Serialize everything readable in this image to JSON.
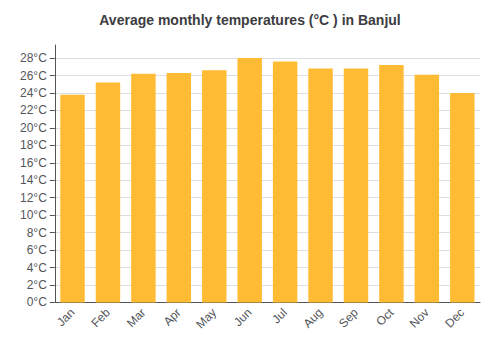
{
  "chart_data": {
    "type": "bar",
    "title": "Average monthly temperatures (°C ) in Banjul",
    "categories": [
      "Jan",
      "Feb",
      "Mar",
      "Apr",
      "May",
      "Jun",
      "Jul",
      "Aug",
      "Sep",
      "Oct",
      "Nov",
      "Dec"
    ],
    "values": [
      23.8,
      25.2,
      26.2,
      26.3,
      26.6,
      28.0,
      27.6,
      26.8,
      26.8,
      27.2,
      26.1,
      24.0
    ],
    "color": "#FFBB33",
    "ylim": [
      0,
      29.5
    ],
    "yticks": [
      {
        "value": 0,
        "label": "0°C"
      },
      {
        "value": 2,
        "label": "2°C"
      },
      {
        "value": 4,
        "label": "4°C"
      },
      {
        "value": 6,
        "label": "6°C"
      },
      {
        "value": 8,
        "label": "8°C"
      },
      {
        "value": 10,
        "label": "10°C"
      },
      {
        "value": 12,
        "label": "12°C"
      },
      {
        "value": 14,
        "label": "14°C"
      },
      {
        "value": 16,
        "label": "16°C"
      },
      {
        "value": 18,
        "label": "18°C"
      },
      {
        "value": 20,
        "label": "20°C"
      },
      {
        "value": 22,
        "label": "22°C"
      },
      {
        "value": 24,
        "label": "24°C"
      },
      {
        "value": 26,
        "label": "26°C"
      },
      {
        "value": 28,
        "label": "28°C"
      }
    ],
    "grid": true
  }
}
